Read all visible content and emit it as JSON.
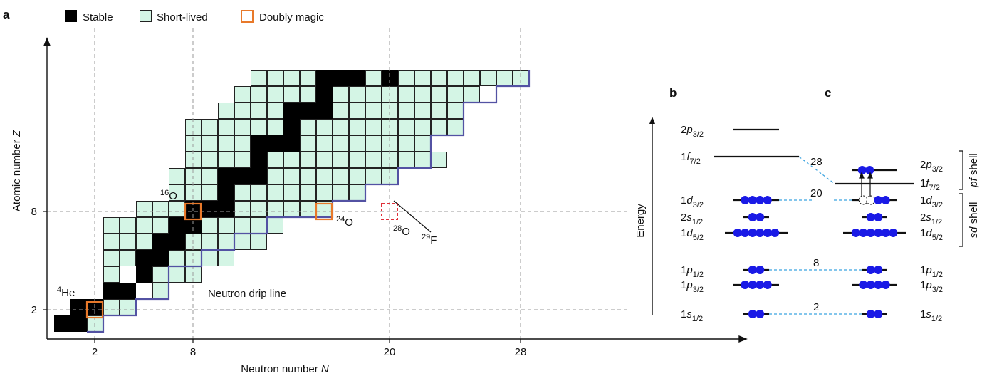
{
  "panels": {
    "a": "a",
    "b": "b",
    "c": "c"
  },
  "legend": {
    "stable": "Stable",
    "short_lived": "Short-lived",
    "doubly_magic": "Doubly magic"
  },
  "colors": {
    "stable": "#000000",
    "short_lived": "#d4f5e5",
    "magic": "#e8792a",
    "dripline": "#5352a3",
    "f28": "#e0303a",
    "electron": "#1a1ae6",
    "dash_blue": "#3aa3e0"
  },
  "panel_a": {
    "xlabel_main": "Neutron number ",
    "xlabel_var": "N",
    "ylabel_main": "Atomic number ",
    "ylabel_var": "Z",
    "xticks": [
      "2",
      "8",
      "20",
      "28"
    ],
    "yticks": [
      "2",
      "8"
    ],
    "annotations": {
      "he4_mass": "4",
      "he4_sym": "He",
      "o16_mass": "16",
      "o16_sym": "O",
      "o24_mass": "24",
      "o24_sym": "O",
      "o28_mass": "28",
      "o28_sym": "O",
      "f29_mass": "29",
      "f29_sym": "F",
      "drip_line": "Neutron drip line"
    }
  },
  "panel_bc": {
    "energy_label": "Energy",
    "magic_numbers": {
      "n2": "2",
      "n8": "8",
      "n20": "20",
      "n28": "28"
    },
    "shell_labels": {
      "pf_var": "pf",
      "sd_var": "sd",
      "word": " shell"
    },
    "levels_b": [
      {
        "n": "2",
        "l": "p",
        "j": "3/2"
      },
      {
        "n": "1",
        "l": "f",
        "j": "7/2"
      },
      {
        "n": "1",
        "l": "d",
        "j": "3/2"
      },
      {
        "n": "2",
        "l": "s",
        "j": "1/2"
      },
      {
        "n": "1",
        "l": "d",
        "j": "5/2"
      },
      {
        "n": "1",
        "l": "p",
        "j": "1/2"
      },
      {
        "n": "1",
        "l": "p",
        "j": "3/2"
      },
      {
        "n": "1",
        "l": "s",
        "j": "1/2"
      }
    ],
    "levels_c": [
      {
        "n": "2",
        "l": "p",
        "j": "3/2"
      },
      {
        "n": "1",
        "l": "f",
        "j": "7/2"
      },
      {
        "n": "1",
        "l": "d",
        "j": "3/2"
      },
      {
        "n": "2",
        "l": "s",
        "j": "1/2"
      },
      {
        "n": "1",
        "l": "d",
        "j": "5/2"
      },
      {
        "n": "1",
        "l": "p",
        "j": "1/2"
      },
      {
        "n": "1",
        "l": "p",
        "j": "3/2"
      },
      {
        "n": "1",
        "l": "s",
        "j": "1/2"
      }
    ]
  }
}
